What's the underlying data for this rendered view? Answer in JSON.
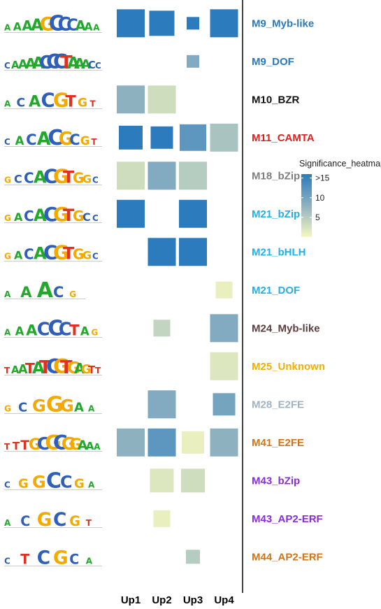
{
  "chart_data": {
    "type": "heatmap",
    "columns": [
      "Up1",
      "Up2",
      "Up3",
      "Up4"
    ],
    "rows": [
      {
        "label": "M9_Myb-like",
        "label_color": "#2a7ab8",
        "logo": "AAAAGCCCAAA",
        "values": [
          16,
          16,
          16,
          16
        ],
        "sizes": [
          1.0,
          0.9,
          0.45,
          1.0
        ]
      },
      {
        "label": "M9_DOF",
        "label_color": "#2a7ab8",
        "logo": "CAAAACCCTAAACC",
        "values": [
          null,
          null,
          9,
          null
        ],
        "sizes": [
          0,
          0,
          0.45,
          0
        ]
      },
      {
        "label": "M10_BZR",
        "label_color": "#111111",
        "logo": "ACACGTGT",
        "values": [
          8,
          3,
          null,
          null
        ],
        "sizes": [
          1.0,
          1.0,
          0,
          0
        ]
      },
      {
        "label": "M11_CAMTA",
        "label_color": "#e02020",
        "logo": "CACACGCGT",
        "values": [
          16,
          16,
          12,
          6
        ],
        "sizes": [
          0.85,
          0.8,
          0.95,
          1.0
        ]
      },
      {
        "label": "M18_bZip",
        "label_color": "#7f7f7f",
        "logo": "GCCACGTGGC",
        "values": [
          3,
          9,
          5,
          null
        ],
        "sizes": [
          1.0,
          1.0,
          1.0,
          0
        ]
      },
      {
        "label": "M21_bZip",
        "label_color": "#22b0e6",
        "logo": "GACACGTGCC",
        "values": [
          16,
          null,
          16,
          null
        ],
        "sizes": [
          1.0,
          0,
          1.0,
          0
        ]
      },
      {
        "label": "M21_bHLH",
        "label_color": "#22b0e6",
        "logo": "GACACGTGGC",
        "values": [
          null,
          16,
          16,
          null
        ],
        "sizes": [
          0,
          1.0,
          1.0,
          0
        ]
      },
      {
        "label": "M21_DOF",
        "label_color": "#22b0e6",
        "logo": "AAACG",
        "values": [
          null,
          null,
          null,
          1
        ],
        "sizes": [
          0,
          0,
          0,
          0.6
        ]
      },
      {
        "label": "M24_Myb-like",
        "label_color": "#5a3e3e",
        "logo": "AAACCCTAG",
        "values": [
          null,
          4,
          null,
          9
        ],
        "sizes": [
          0,
          0.6,
          0,
          1.0
        ]
      },
      {
        "label": "M25_Unknown",
        "label_color": "#f0b000",
        "logo": "TAATATCGTGAGTT",
        "values": [
          null,
          null,
          null,
          2
        ],
        "sizes": [
          0,
          0,
          0,
          1.0
        ]
      },
      {
        "label": "M28_E2FE",
        "label_color": "#9eb4c4",
        "logo": "GCGGGAA",
        "values": [
          null,
          9,
          null,
          10
        ],
        "sizes": [
          0,
          1.0,
          0,
          0.8
        ]
      },
      {
        "label": "M41_E2FE",
        "label_color": "#d0741a",
        "logo": "TTTGCGCGGAAA",
        "values": [
          8,
          12,
          1,
          8
        ],
        "sizes": [
          1.0,
          1.0,
          0.8,
          1.0
        ]
      },
      {
        "label": "M43_bZip",
        "label_color": "#8a2be2",
        "logo": "CGGCCGA",
        "values": [
          null,
          2,
          3,
          null
        ],
        "sizes": [
          0,
          0.85,
          0.85,
          0
        ]
      },
      {
        "label": "M43_AP2-ERF",
        "label_color": "#8a2be2",
        "logo": "ACGCGT",
        "values": [
          null,
          1,
          null,
          null
        ],
        "sizes": [
          0,
          0.6,
          0,
          0
        ]
      },
      {
        "label": "M44_AP2-ERF",
        "label_color": "#d0741a",
        "logo": "CTCGCA",
        "values": [
          null,
          null,
          5,
          null
        ],
        "sizes": [
          0,
          0,
          0.5,
          0
        ]
      }
    ],
    "legend": {
      "title": "Significance_heatmap",
      "ticks": [
        ">15",
        "10",
        "5"
      ],
      "tick_values": [
        15,
        10,
        5
      ],
      "min": 0,
      "max": 16,
      "color_low": "#f6f8bf",
      "color_mid": "#8eb1c0",
      "color_high": "#2b7bbd",
      "placement": "right"
    },
    "base_colors": {
      "A": "#22a82a",
      "C": "#2f5fb8",
      "G": "#f2a900",
      "T": "#e0301e"
    }
  }
}
